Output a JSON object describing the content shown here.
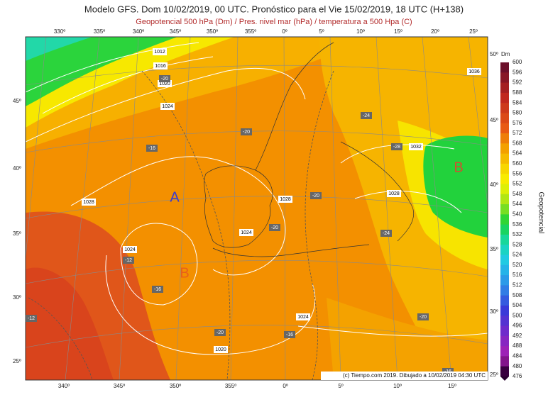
{
  "header": {
    "title": "Modelo GFS. Dom 10/02/2019, 00 UTC. Pronóstico para el Vie 15/02/2019, 18 UTC (H+138)",
    "subtitle": "Geopotencial 500 hPa (Dm) / Pres. nivel mar (hPa) / temperatura a 500 Hpa (C)"
  },
  "map": {
    "lon_top": [
      "330º",
      "335º",
      "340º",
      "345º",
      "350º",
      "355º",
      "0º",
      "5º",
      "10º",
      "15º",
      "20º",
      "25º"
    ],
    "lon_bottom": [
      "340º",
      "345º",
      "350º",
      "355º",
      "0º",
      "5º",
      "10º",
      "15º"
    ],
    "lat_left": [
      "45º",
      "40º",
      "35º",
      "30º",
      "25º"
    ],
    "lat_right": [
      "50º",
      "45º",
      "40º",
      "35º",
      "30º",
      "25º"
    ],
    "isobar_labels": [
      "1012",
      "1016",
      "1020",
      "1024",
      "1028",
      "1028",
      "1024",
      "1024",
      "1028",
      "1032",
      "1036",
      "1024",
      "1020"
    ],
    "temperature_labels": [
      "-20",
      "-20",
      "-16",
      "-24",
      "-28",
      "-20",
      "-20",
      "-24",
      "-12",
      "-16",
      "-12",
      "-20",
      "-16",
      "-20",
      "-16"
    ],
    "centers": [
      "A",
      "B",
      "B"
    ],
    "credit": "(c) Tiempo.com 2019. Dibujado a 10/02/2019 04:30 UTC"
  },
  "colorbar": {
    "unit": "Dm",
    "title": "Geopotencial",
    "labels": [
      "600",
      "596",
      "592",
      "588",
      "584",
      "580",
      "576",
      "572",
      "568",
      "564",
      "560",
      "556",
      "552",
      "548",
      "544",
      "540",
      "536",
      "532",
      "528",
      "524",
      "520",
      "516",
      "512",
      "508",
      "504",
      "500",
      "496",
      "492",
      "488",
      "484",
      "480",
      "476"
    ]
  }
}
